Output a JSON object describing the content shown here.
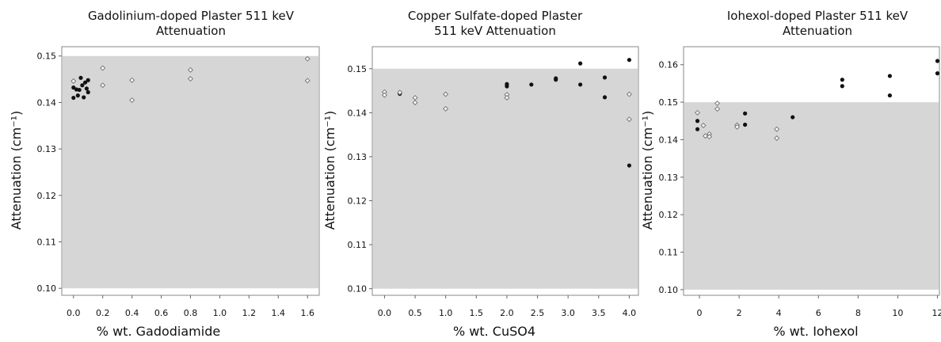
{
  "chart_data": [
    {
      "type": "scatter",
      "title": [
        "Gadolinium-doped Plaster 511 keV",
        "Attenuation"
      ],
      "xlabel": "% wt. Gadodiamide",
      "ylabel": "Attenuation (cm⁻¹)",
      "xlim": [
        -0.08,
        1.68
      ],
      "ylim": [
        0.0985,
        0.152
      ],
      "xticks": [
        0.0,
        0.2,
        0.4,
        0.6,
        0.8,
        1.0,
        1.2,
        1.4,
        1.6
      ],
      "xtick_labels": [
        "0.0",
        "0.2",
        "0.4",
        "0.6",
        "0.8",
        "1.0",
        "1.2",
        "1.4",
        "1.6"
      ],
      "yticks": [
        0.1,
        0.11,
        0.12,
        0.13,
        0.14,
        0.15
      ],
      "ytick_labels": [
        "0.10",
        "0.11",
        "0.12",
        "0.13",
        "0.14",
        "0.15"
      ],
      "shaded_band": [
        0.1,
        0.15
      ],
      "band_color": "#d6d6d6",
      "series": [
        {
          "marker": "filled",
          "color": "#111111",
          "points": [
            [
              0.0,
              0.1432
            ],
            [
              0.0,
              0.141
            ],
            [
              0.02,
              0.1428
            ],
            [
              0.03,
              0.1415
            ],
            [
              0.04,
              0.1427
            ],
            [
              0.05,
              0.1453
            ],
            [
              0.06,
              0.1437
            ],
            [
              0.07,
              0.1411
            ],
            [
              0.08,
              0.1443
            ],
            [
              0.09,
              0.143
            ],
            [
              0.1,
              0.1448
            ],
            [
              0.1,
              0.1422
            ]
          ]
        },
        {
          "marker": "open",
          "color": "#777777",
          "points": [
            [
              0.0,
              0.1446
            ],
            [
              0.2,
              0.1474
            ],
            [
              0.2,
              0.1437
            ],
            [
              0.4,
              0.1448
            ],
            [
              0.4,
              0.1405
            ],
            [
              0.8,
              0.147
            ],
            [
              0.8,
              0.1451
            ],
            [
              1.6,
              0.1494
            ],
            [
              1.6,
              0.1447
            ]
          ]
        }
      ]
    },
    {
      "type": "scatter",
      "title": [
        "Copper Sulfate-doped Plaster",
        "511 keV Attenuation"
      ],
      "xlabel": "% wt. CuSO4",
      "ylabel": "Attenuation (cm⁻¹)",
      "xlim": [
        -0.2,
        4.15
      ],
      "ylim": [
        0.0985,
        0.155
      ],
      "xticks": [
        0.0,
        0.5,
        1.0,
        1.5,
        2.0,
        2.5,
        3.0,
        3.5,
        4.0
      ],
      "xtick_labels": [
        "0.0",
        "0.5",
        "1.0",
        "1.5",
        "2.0",
        "2.5",
        "3.0",
        "3.5",
        "4.0"
      ],
      "yticks": [
        0.1,
        0.11,
        0.12,
        0.13,
        0.14,
        0.15
      ],
      "ytick_labels": [
        "0.10",
        "0.11",
        "0.12",
        "0.13",
        "0.14",
        "0.15"
      ],
      "shaded_band": [
        0.1,
        0.15
      ],
      "band_color": "#d6d6d6",
      "series": [
        {
          "marker": "filled",
          "color": "#111111",
          "points": [
            [
              0.25,
              0.1443
            ],
            [
              2.0,
              0.1465
            ],
            [
              2.0,
              0.146
            ],
            [
              2.4,
              0.1464
            ],
            [
              2.8,
              0.1475
            ],
            [
              2.8,
              0.1478
            ],
            [
              3.2,
              0.1512
            ],
            [
              3.2,
              0.1464
            ],
            [
              3.6,
              0.148
            ],
            [
              3.6,
              0.1435
            ],
            [
              4.0,
              0.152
            ],
            [
              4.0,
              0.128
            ]
          ]
        },
        {
          "marker": "open",
          "color": "#777777",
          "points": [
            [
              0.0,
              0.1447
            ],
            [
              0.0,
              0.144
            ],
            [
              0.25,
              0.1446
            ],
            [
              0.5,
              0.1434
            ],
            [
              0.5,
              0.1423
            ],
            [
              1.0,
              0.1442
            ],
            [
              1.0,
              0.1409
            ],
            [
              2.0,
              0.1441
            ],
            [
              2.0,
              0.1434
            ],
            [
              4.0,
              0.1442
            ],
            [
              4.0,
              0.1385
            ]
          ]
        }
      ]
    },
    {
      "type": "scatter",
      "title": [
        "Iohexol-doped Plaster 511 keV",
        "Attenuation"
      ],
      "xlabel": "% wt. Iohexol",
      "ylabel": "Attenuation (cm⁻¹)",
      "xlim": [
        -0.8,
        12.1
      ],
      "ylim": [
        0.0985,
        0.1648
      ],
      "xticks": [
        0,
        2,
        4,
        6,
        8,
        10,
        12
      ],
      "xtick_labels": [
        "0",
        "2",
        "4",
        "6",
        "8",
        "10",
        "12"
      ],
      "yticks": [
        0.1,
        0.11,
        0.12,
        0.13,
        0.14,
        0.15,
        0.16
      ],
      "ytick_labels": [
        "0.10",
        "0.11",
        "0.12",
        "0.13",
        "0.14",
        "0.15",
        "0.16"
      ],
      "shaded_band": [
        0.1,
        0.15
      ],
      "band_color": "#d6d6d6",
      "series": [
        {
          "marker": "filled",
          "color": "#111111",
          "points": [
            [
              -0.1,
              0.145
            ],
            [
              -0.1,
              0.1428
            ],
            [
              2.3,
              0.147
            ],
            [
              2.3,
              0.144
            ],
            [
              4.7,
              0.146
            ],
            [
              7.2,
              0.156
            ],
            [
              7.2,
              0.1543
            ],
            [
              9.6,
              0.157
            ],
            [
              9.6,
              0.1518
            ],
            [
              12.0,
              0.161
            ],
            [
              12.0,
              0.1577
            ]
          ]
        },
        {
          "marker": "open",
          "color": "#777777",
          "points": [
            [
              -0.1,
              0.1472
            ],
            [
              0.2,
              0.1438
            ],
            [
              0.3,
              0.141
            ],
            [
              0.5,
              0.1415
            ],
            [
              0.5,
              0.1408
            ],
            [
              0.9,
              0.1497
            ],
            [
              0.9,
              0.1482
            ],
            [
              1.9,
              0.1439
            ],
            [
              1.9,
              0.1434
            ],
            [
              3.9,
              0.1428
            ],
            [
              3.9,
              0.1404
            ]
          ]
        }
      ]
    }
  ]
}
